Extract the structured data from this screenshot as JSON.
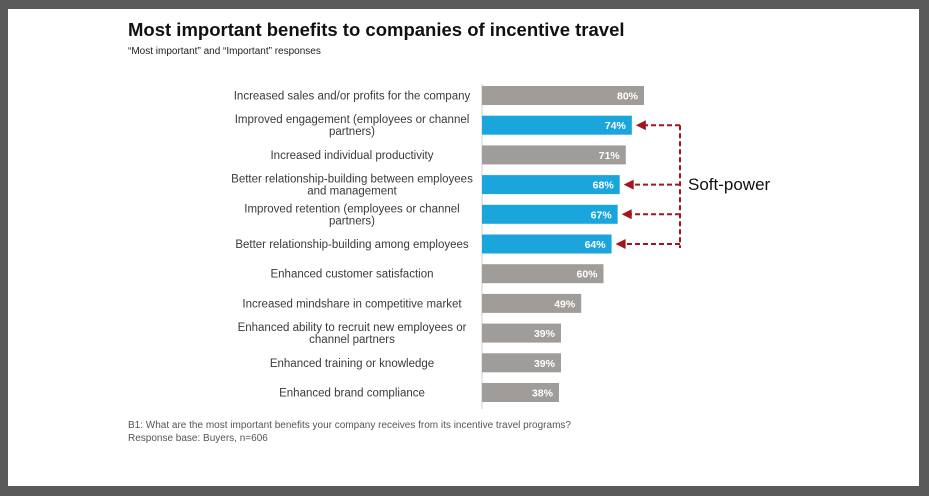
{
  "title": "Most important benefits to companies of incentive travel",
  "subtitle": "“Most important” and “Important” responses",
  "chart_data": {
    "type": "bar",
    "orientation": "horizontal",
    "title": "Most important benefits to companies of incentive travel",
    "subtitle": "“Most important” and “Important” responses",
    "categories": [
      [
        "Increased sales and/or profits for the company"
      ],
      [
        "Improved engagement (employees or channel",
        "partners)"
      ],
      [
        "Increased individual productivity"
      ],
      [
        "Better relationship-building between employees",
        "and management"
      ],
      [
        "Improved retention (employees or channel",
        "partners)"
      ],
      [
        "Better relationship-building among employees"
      ],
      [
        "Enhanced customer satisfaction"
      ],
      [
        "Increased mindshare in competitive market"
      ],
      [
        "Enhanced ability to recruit new employees or",
        "channel partners"
      ],
      [
        "Enhanced training or knowledge"
      ],
      [
        "Enhanced brand compliance"
      ]
    ],
    "values": [
      80,
      74,
      71,
      68,
      67,
      64,
      60,
      49,
      39,
      39,
      38
    ],
    "value_labels": [
      "80%",
      "74%",
      "71%",
      "68%",
      "67%",
      "64%",
      "60%",
      "49%",
      "39%",
      "39%",
      "38%"
    ],
    "highlighted": [
      false,
      true,
      false,
      true,
      true,
      true,
      false,
      false,
      false,
      false,
      false
    ],
    "colors": {
      "default": "#a09c99",
      "highlight": "#1aa6dc",
      "arrow": "#a3161d"
    },
    "xlim": [
      0,
      80
    ],
    "grid": false,
    "annotation": {
      "text": "Soft-power",
      "targets": [
        1,
        3,
        4,
        5
      ]
    }
  },
  "footnote": {
    "line1": "B1: What are the most important benefits your company receives from its incentive travel programs?",
    "line2": "Response base: Buyers, n=606"
  }
}
